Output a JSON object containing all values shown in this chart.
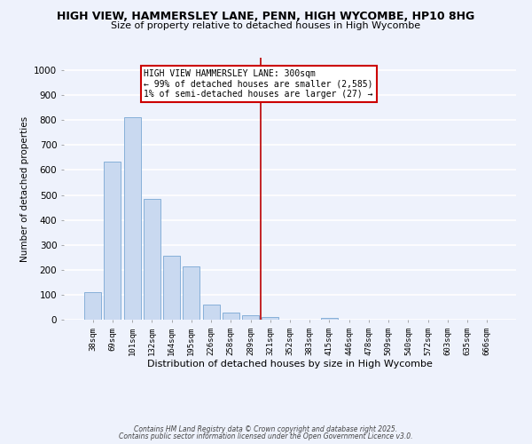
{
  "title": "HIGH VIEW, HAMMERSLEY LANE, PENN, HIGH WYCOMBE, HP10 8HG",
  "subtitle": "Size of property relative to detached houses in High Wycombe",
  "xlabel": "Distribution of detached houses by size in High Wycombe",
  "ylabel": "Number of detached properties",
  "bar_labels": [
    "38sqm",
    "69sqm",
    "101sqm",
    "132sqm",
    "164sqm",
    "195sqm",
    "226sqm",
    "258sqm",
    "289sqm",
    "321sqm",
    "352sqm",
    "383sqm",
    "415sqm",
    "446sqm",
    "478sqm",
    "509sqm",
    "540sqm",
    "572sqm",
    "603sqm",
    "635sqm",
    "666sqm"
  ],
  "bar_values": [
    110,
    635,
    810,
    485,
    255,
    215,
    62,
    28,
    18,
    12,
    0,
    0,
    8,
    0,
    0,
    0,
    0,
    0,
    0,
    0,
    0
  ],
  "bar_color": "#c9d9f0",
  "bar_edge_color": "#7aa8d4",
  "vline_color": "#bb0000",
  "ylim": [
    0,
    1050
  ],
  "yticks": [
    0,
    100,
    200,
    300,
    400,
    500,
    600,
    700,
    800,
    900,
    1000
  ],
  "annotation_title": "HIGH VIEW HAMMERSLEY LANE: 300sqm",
  "annotation_line1": "← 99% of detached houses are smaller (2,585)",
  "annotation_line2": "1% of semi-detached houses are larger (27) →",
  "annotation_box_color": "#ffffff",
  "annotation_box_edge": "#cc0000",
  "background_color": "#eef2fc",
  "grid_color": "#ffffff",
  "footer1": "Contains HM Land Registry data © Crown copyright and database right 2025.",
  "footer2": "Contains public sector information licensed under the Open Government Licence v3.0."
}
